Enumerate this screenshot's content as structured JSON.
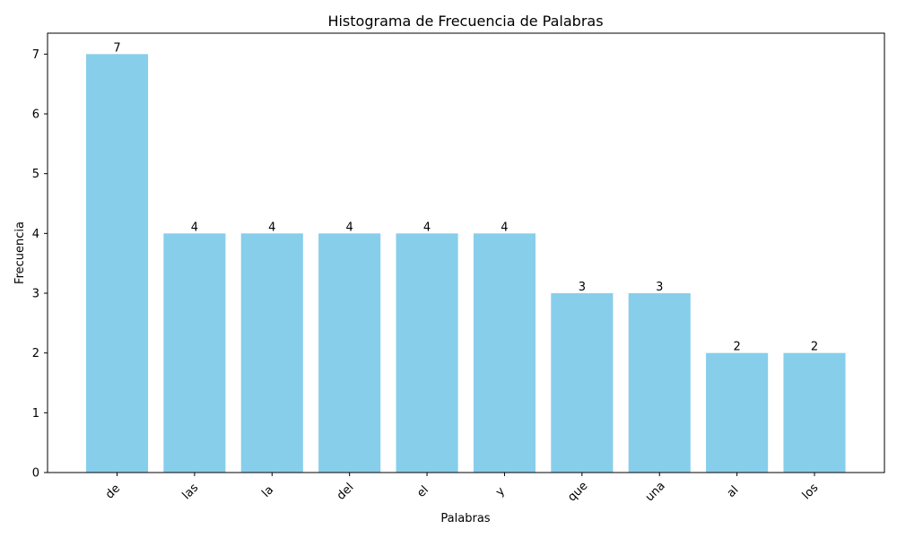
{
  "chart_data": {
    "type": "bar",
    "title": "Histograma de Frecuencia de Palabras",
    "xlabel": "Palabras",
    "ylabel": "Frecuencia",
    "categories": [
      "de",
      "las",
      "la",
      "del",
      "el",
      "y",
      "que",
      "una",
      "al",
      "los"
    ],
    "values": [
      7,
      4,
      4,
      4,
      4,
      4,
      3,
      3,
      2,
      2
    ],
    "ylim": [
      0,
      7.35
    ],
    "yticks": [
      "0",
      "1",
      "2",
      "3",
      "4",
      "5",
      "6",
      "7"
    ],
    "bar_color": "#87ceeb",
    "grid": false,
    "legend": false,
    "data_labels": true,
    "x_tick_rotation": 45
  }
}
